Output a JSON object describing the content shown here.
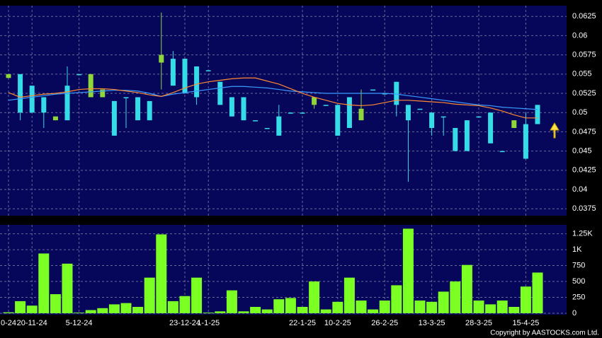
{
  "chart_data": [
    {
      "type": "candlestick",
      "up_color": "#8fd63a",
      "down_color": "#36dbe8",
      "ylim": [
        0.0366,
        0.0639
      ],
      "yticks": [
        0.0375,
        0.04,
        0.0425,
        0.045,
        0.0475,
        0.05,
        0.0525,
        0.055,
        0.0575,
        0.06,
        0.0625
      ],
      "grid": true,
      "open": [
        0.0545,
        0.055,
        0.0535,
        0.052,
        0.049,
        0.0535,
        0.055,
        0.052,
        0.052,
        0.0515,
        0.052,
        0.052,
        0.0515,
        0.0565,
        0.057,
        0.057,
        0.056,
        0.0555,
        0.054,
        0.052,
        0.052,
        0.049,
        0.048,
        0.0495,
        0.05,
        0.05,
        0.051,
        0.051,
        0.051,
        0.052,
        0.049,
        0.053,
        0.0525,
        0.054,
        0.051,
        0.0505,
        0.05,
        0.0495,
        0.048,
        0.049,
        0.0495,
        0.05,
        0.045,
        0.048,
        0.0485,
        0.051
      ],
      "high": [
        0.055,
        0.055,
        0.0535,
        0.052,
        0.0495,
        0.056,
        0.055,
        0.055,
        0.053,
        0.0515,
        0.052,
        0.052,
        0.0515,
        0.063,
        0.058,
        0.057,
        0.056,
        0.0555,
        0.054,
        0.052,
        0.052,
        0.049,
        0.048,
        0.051,
        0.05,
        0.05,
        0.052,
        0.051,
        0.051,
        0.052,
        0.053,
        0.053,
        0.0525,
        0.054,
        0.051,
        0.0505,
        0.05,
        0.0495,
        0.048,
        0.049,
        0.0495,
        0.05,
        0.045,
        0.049,
        0.05,
        0.051
      ],
      "low": [
        0.0545,
        0.049,
        0.05,
        0.048,
        0.049,
        0.049,
        0.055,
        0.052,
        0.052,
        0.047,
        0.048,
        0.049,
        0.049,
        0.053,
        0.0535,
        0.0525,
        0.051,
        0.0555,
        0.051,
        0.0495,
        0.049,
        0.049,
        0.048,
        0.047,
        0.05,
        0.05,
        0.0505,
        0.051,
        0.047,
        0.048,
        0.049,
        0.053,
        0.0525,
        0.0495,
        0.041,
        0.0505,
        0.047,
        0.047,
        0.045,
        0.045,
        0.0495,
        0.046,
        0.045,
        0.048,
        0.044,
        0.0485
      ],
      "close": [
        0.055,
        0.05,
        0.05,
        0.05,
        0.0495,
        0.049,
        0.055,
        0.055,
        0.053,
        0.047,
        0.0519,
        0.049,
        0.049,
        0.0575,
        0.0535,
        0.0525,
        0.052,
        0.0555,
        0.051,
        0.0495,
        0.049,
        0.049,
        0.048,
        0.047,
        0.05,
        0.05,
        0.052,
        0.051,
        0.047,
        0.048,
        0.0505,
        0.053,
        0.0525,
        0.051,
        0.049,
        0.0505,
        0.048,
        0.0495,
        0.045,
        0.045,
        0.0495,
        0.046,
        0.045,
        0.049,
        0.044,
        0.0485
      ],
      "series": [
        {
          "color": "#3a9cff",
          "values": [
            0.0516,
            0.0518,
            0.052,
            0.0522,
            0.0524,
            0.0525,
            0.0526,
            0.0527,
            0.0528,
            0.0529,
            0.0529,
            0.0528,
            0.0525,
            0.0521,
            0.0524,
            0.0526,
            0.0528,
            0.053,
            0.0532,
            0.0534,
            0.0534,
            0.0533,
            0.0532,
            0.053,
            0.0528,
            0.0527,
            0.0526,
            0.0525,
            0.0525,
            0.0525,
            0.0525,
            0.0525,
            0.0525,
            0.0524,
            0.0522,
            0.052,
            0.0518,
            0.0516,
            0.0514,
            0.0512,
            0.051,
            0.0509,
            0.0507,
            0.0506,
            0.0505,
            0.0504
          ]
        },
        {
          "color": "#ff8a33",
          "values": [
            0.0526,
            0.052,
            0.0522,
            0.0524,
            0.0525,
            0.0527,
            0.053,
            0.0531,
            0.0531,
            0.053,
            0.0528,
            0.0526,
            0.0523,
            0.0521,
            0.0526,
            0.0532,
            0.0537,
            0.054,
            0.0542,
            0.0544,
            0.0545,
            0.0545,
            0.0541,
            0.0537,
            0.0531,
            0.0525,
            0.052,
            0.0516,
            0.0512,
            0.051,
            0.0509,
            0.051,
            0.0513,
            0.0516,
            0.0516,
            0.0515,
            0.0514,
            0.0513,
            0.0511,
            0.051,
            0.0509,
            0.0506,
            0.0502,
            0.0497,
            0.0493,
            0.0493
          ]
        }
      ]
    },
    {
      "type": "bar",
      "color": "#7cff22",
      "ylim": [
        0,
        1390
      ],
      "yticks": [
        0,
        250,
        500,
        750,
        {
          "value": 1000,
          "label": "1K"
        },
        {
          "value": 1250,
          "label": "1.25K"
        }
      ],
      "grid": true,
      "categories": [
        "0-24",
        null,
        "20-11-24",
        null,
        null,
        null,
        "5-12-24",
        null,
        null,
        null,
        null,
        null,
        null,
        null,
        null,
        "23-12-24",
        null,
        "1-1-25",
        null,
        null,
        null,
        null,
        null,
        null,
        null,
        "22-1-25",
        null,
        null,
        "10-2-25",
        null,
        null,
        null,
        "26-2-25",
        null,
        null,
        null,
        "13-3-25",
        null,
        null,
        null,
        "28-3-25",
        null,
        null,
        null,
        "15-4-25",
        null
      ],
      "values": [
        15,
        190,
        120,
        940,
        300,
        780,
        10,
        50,
        80,
        140,
        160,
        100,
        560,
        1240,
        190,
        270,
        560,
        10,
        30,
        360,
        30,
        100,
        60,
        220,
        240,
        100,
        500,
        60,
        180,
        560,
        200,
        60,
        200,
        440,
        1330,
        200,
        180,
        340,
        500,
        760,
        200,
        140,
        200,
        100,
        420,
        640
      ],
      "footer": "Copyright by AASTOCKS.com Ltd."
    }
  ]
}
